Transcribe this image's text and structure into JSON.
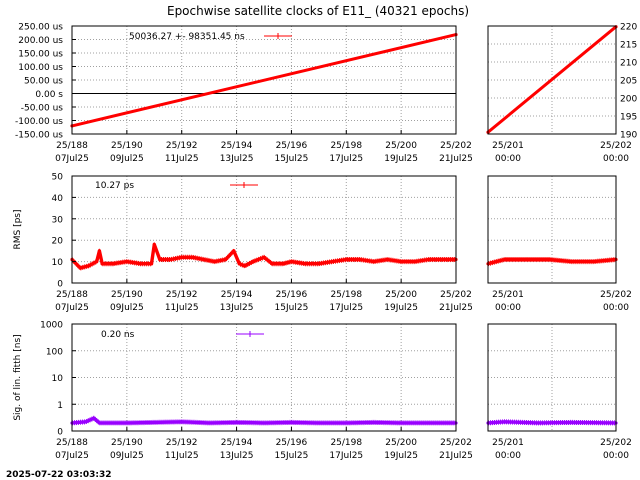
{
  "title": "Epochwise satellite clocks of E11_ (40321 epochs)",
  "timestamp": "2025-07-22 03:03:32",
  "colors": {
    "red": "#ff0000",
    "purple": "#9900ff",
    "grid": "#a0a0a0"
  },
  "x_tick_labels_main": [
    {
      "l1": "25/188",
      "l2": "07Jul25"
    },
    {
      "l1": "25/190",
      "l2": "09Jul25"
    },
    {
      "l1": "25/192",
      "l2": "11Jul25"
    },
    {
      "l1": "25/194",
      "l2": "13Jul25"
    },
    {
      "l1": "25/196",
      "l2": "15Jul25"
    },
    {
      "l1": "25/198",
      "l2": "17Jul25"
    },
    {
      "l1": "25/200",
      "l2": "19Jul25"
    },
    {
      "l1": "25/202",
      "l2": "21Jul25"
    }
  ],
  "x_tick_labels_zoom": [
    {
      "l1": "25/201",
      "l2": "00:00"
    },
    {
      "l1": "25/202",
      "l2": "00:00"
    }
  ],
  "chart_data": [
    {
      "id": "clock",
      "type": "line",
      "legend": "50036.27 +-   98351.45 ns",
      "y_tick_labels": [
        "250.00 us",
        "200.00 us",
        "150.00 us",
        "100.00 us",
        "50.00 us",
        "0.00  s",
        "-50.00 us",
        "-100.00 us",
        "-150.00 us"
      ],
      "ylim": [
        -150,
        250
      ],
      "y_unit": "us",
      "xlim": [
        188,
        202
      ],
      "x_unit": "day of year 2025",
      "points": [
        [
          188.0,
          -120
        ],
        [
          202.0,
          218
        ]
      ],
      "grid": true
    },
    {
      "id": "clock-zoom",
      "type": "line",
      "y_tick_labels": [
        "220",
        "215",
        "210",
        "205",
        "200",
        "195",
        "190"
      ],
      "ylim": [
        190,
        220
      ],
      "xlim": [
        200.85,
        202.0
      ],
      "points": [
        [
          200.85,
          190.5
        ],
        [
          202.0,
          219.8
        ]
      ],
      "grid": true
    },
    {
      "id": "rms",
      "type": "line",
      "legend": "10.27 ps",
      "ylabel": "RMS [ps]",
      "y_tick_labels": [
        "50",
        "40",
        "30",
        "20",
        "10",
        "0"
      ],
      "ylim": [
        0,
        50
      ],
      "xlim": [
        188,
        202
      ],
      "points": [
        [
          188.0,
          11
        ],
        [
          188.3,
          7
        ],
        [
          188.6,
          8
        ],
        [
          188.9,
          10
        ],
        [
          189.0,
          15
        ],
        [
          189.1,
          9
        ],
        [
          189.5,
          9
        ],
        [
          190.0,
          10
        ],
        [
          190.5,
          9
        ],
        [
          190.9,
          9
        ],
        [
          191.0,
          18
        ],
        [
          191.2,
          11
        ],
        [
          191.6,
          11
        ],
        [
          192.0,
          12
        ],
        [
          192.4,
          12
        ],
        [
          192.8,
          11
        ],
        [
          193.2,
          10
        ],
        [
          193.6,
          11
        ],
        [
          193.9,
          15
        ],
        [
          194.1,
          9
        ],
        [
          194.3,
          8
        ],
        [
          194.6,
          10
        ],
        [
          195.0,
          12
        ],
        [
          195.3,
          9
        ],
        [
          195.7,
          9
        ],
        [
          196.0,
          10
        ],
        [
          196.5,
          9
        ],
        [
          197.0,
          9
        ],
        [
          197.5,
          10
        ],
        [
          198.0,
          11
        ],
        [
          198.5,
          11
        ],
        [
          199.0,
          10
        ],
        [
          199.5,
          11
        ],
        [
          200.0,
          10
        ],
        [
          200.5,
          10
        ],
        [
          201.0,
          11
        ],
        [
          201.5,
          11
        ],
        [
          202.0,
          11
        ]
      ],
      "grid": true
    },
    {
      "id": "rms-zoom",
      "type": "line",
      "y_tick_labels": [],
      "ylim": [
        0,
        50
      ],
      "xlim": [
        200.85,
        202.0
      ],
      "points": [
        [
          200.85,
          9
        ],
        [
          201.0,
          11
        ],
        [
          201.2,
          11
        ],
        [
          201.4,
          11
        ],
        [
          201.6,
          10
        ],
        [
          201.8,
          10
        ],
        [
          202.0,
          11
        ]
      ],
      "grid": true
    },
    {
      "id": "sigma",
      "type": "line",
      "legend": "0.20 ns",
      "ylabel": "Sig. of lin. fitth [ns]",
      "y_tick_labels": [
        "1000",
        "100",
        "10",
        "1",
        "0"
      ],
      "yscale": "log",
      "xlim": [
        188,
        202
      ],
      "points": [
        [
          188.0,
          0.2
        ],
        [
          188.5,
          0.22
        ],
        [
          188.8,
          0.3
        ],
        [
          189.0,
          0.2
        ],
        [
          190.0,
          0.2
        ],
        [
          191.0,
          0.21
        ],
        [
          192.0,
          0.22
        ],
        [
          193.0,
          0.2
        ],
        [
          194.0,
          0.21
        ],
        [
          195.0,
          0.2
        ],
        [
          196.0,
          0.21
        ],
        [
          197.0,
          0.2
        ],
        [
          198.0,
          0.2
        ],
        [
          199.0,
          0.21
        ],
        [
          200.0,
          0.2
        ],
        [
          201.0,
          0.2
        ],
        [
          202.0,
          0.2
        ]
      ],
      "grid": true
    },
    {
      "id": "sigma-zoom",
      "type": "line",
      "y_tick_labels": [],
      "yscale": "log",
      "xlim": [
        200.85,
        202.0
      ],
      "points": [
        [
          200.85,
          0.2
        ],
        [
          201.0,
          0.22
        ],
        [
          201.3,
          0.2
        ],
        [
          201.6,
          0.21
        ],
        [
          202.0,
          0.2
        ]
      ],
      "grid": true
    }
  ]
}
